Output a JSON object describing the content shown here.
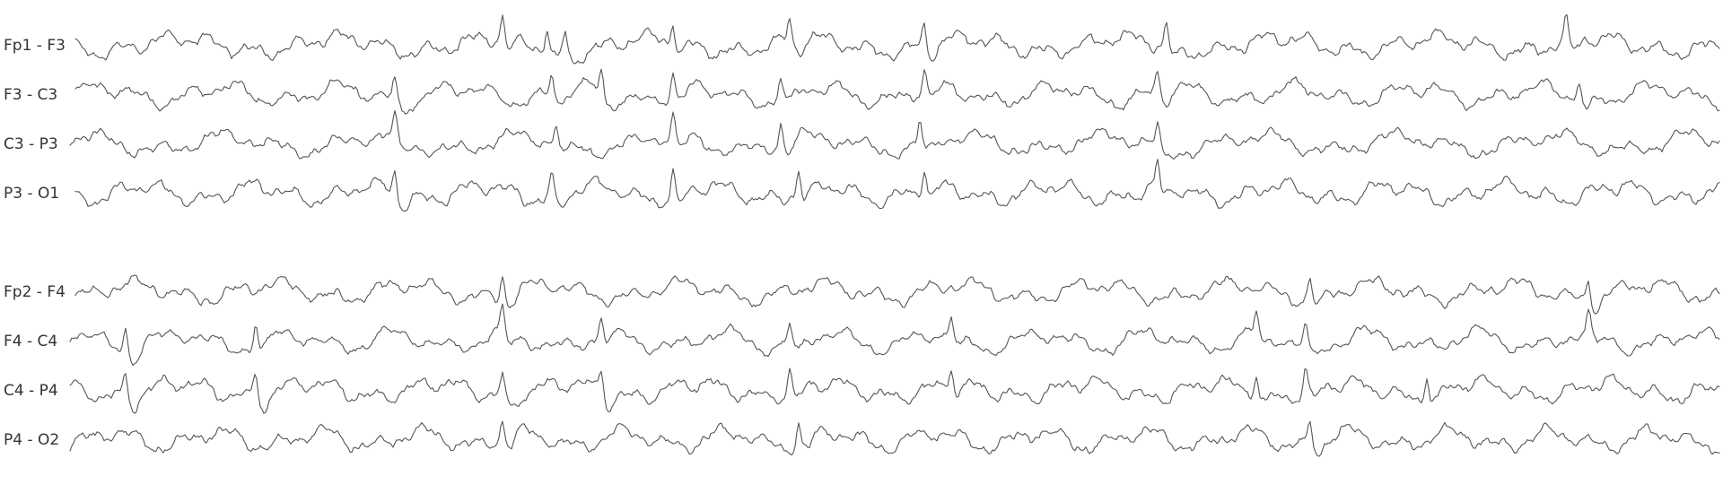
{
  "chart_data": {
    "type": "line",
    "title": "",
    "xlabel": "",
    "ylabel": "",
    "grid": false,
    "legend": "none",
    "trace_color": "#555555",
    "label_color": "#333333",
    "background": "#ffffff",
    "groups": [
      {
        "name": "",
        "channels": [
          {
            "label": "Fp1 - F3"
          },
          {
            "label": "F3 - C3"
          },
          {
            "label": "C3 - P3"
          },
          {
            "label": "P3 - O1"
          }
        ]
      },
      {
        "name": "",
        "channels": [
          {
            "label": "Fp2 - F4"
          },
          {
            "label": "F4 - C4"
          },
          {
            "label": "C4 - P4"
          },
          {
            "label": "P4 - O2"
          }
        ]
      }
    ]
  }
}
